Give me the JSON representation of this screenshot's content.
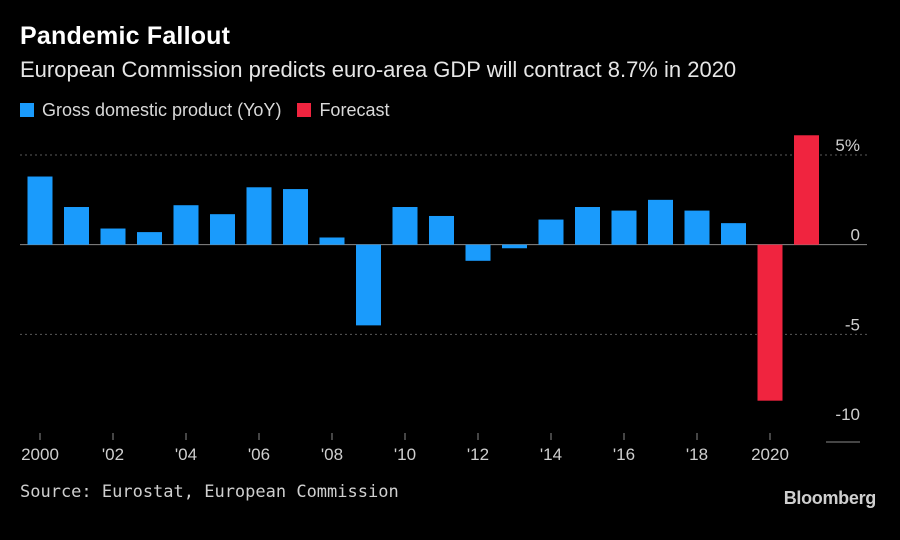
{
  "title": "Pandemic Fallout",
  "subtitle": "European Commission predicts euro-area GDP will contract 8.7% in 2020",
  "legend": [
    {
      "label": "Gross domestic product (YoY)",
      "color": "#1a9bfc"
    },
    {
      "label": "Forecast",
      "color": "#f0243f"
    }
  ],
  "source": "Source: Eurostat, European Commission",
  "brand": "Bloomberg",
  "chart_data": {
    "type": "bar",
    "categories": [
      "2000",
      "2001",
      "2002",
      "2003",
      "2004",
      "2005",
      "2006",
      "2007",
      "2008",
      "2009",
      "2010",
      "2011",
      "2012",
      "2013",
      "2014",
      "2015",
      "2016",
      "2017",
      "2018",
      "2019",
      "2020",
      "2021"
    ],
    "series": [
      {
        "name": "Gross domestic product (YoY)",
        "color": "#1a9bfc",
        "values": [
          3.8,
          2.1,
          0.9,
          0.7,
          2.2,
          1.7,
          3.2,
          3.1,
          0.4,
          -4.5,
          2.1,
          1.6,
          -0.9,
          -0.2,
          1.4,
          2.1,
          1.9,
          2.5,
          1.9,
          1.2,
          null,
          null
        ]
      },
      {
        "name": "Forecast",
        "color": "#f0243f",
        "values": [
          null,
          null,
          null,
          null,
          null,
          null,
          null,
          null,
          null,
          null,
          null,
          null,
          null,
          null,
          null,
          null,
          null,
          null,
          null,
          null,
          -8.7,
          6.1
        ]
      }
    ],
    "x_tick_labels": [
      "2000",
      "'02",
      "'04",
      "'06",
      "'08",
      "'10",
      "'12",
      "'14",
      "'16",
      "'18",
      "2020"
    ],
    "y_ticks": [
      5,
      0,
      -5,
      -10
    ],
    "y_tick_labels": [
      "5%",
      "0",
      "-5",
      "-10"
    ],
    "ylim": [
      -10,
      5
    ],
    "grid": true,
    "legend_position": "top-left"
  }
}
